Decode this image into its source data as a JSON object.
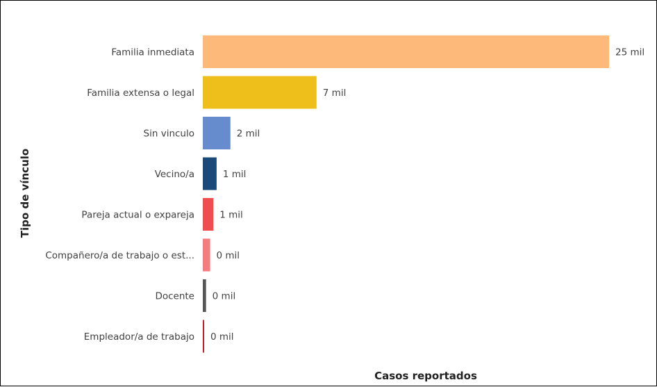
{
  "chart_data": {
    "type": "bar",
    "orientation": "horizontal",
    "categories": [
      "Familia inmediata",
      "Familia extensa o legal",
      "Sin vinculo",
      "Vecino/a",
      "Pareja actual o expareja",
      "Compañero/a de trabajo o est...",
      "Docente",
      "Empleador/a de trabajo"
    ],
    "values": [
      25,
      7,
      1.7,
      0.85,
      0.65,
      0.45,
      0.2,
      0.05
    ],
    "data_labels": [
      "25 mil",
      "7 mil",
      "2 mil",
      "1 mil",
      "1 mil",
      "0 mil",
      "0 mil",
      "0 mil"
    ],
    "colors": [
      "#FDB97A",
      "#EEBE1A",
      "#678CCD",
      "#1B4A7A",
      "#EF4E50",
      "#F47B7E",
      "#555555",
      "#C41E2A"
    ],
    "xlabel": "Casos reportados",
    "ylabel": "Tipo de vínculo",
    "xlim": [
      0,
      25
    ],
    "grid": false,
    "legend": "none"
  }
}
